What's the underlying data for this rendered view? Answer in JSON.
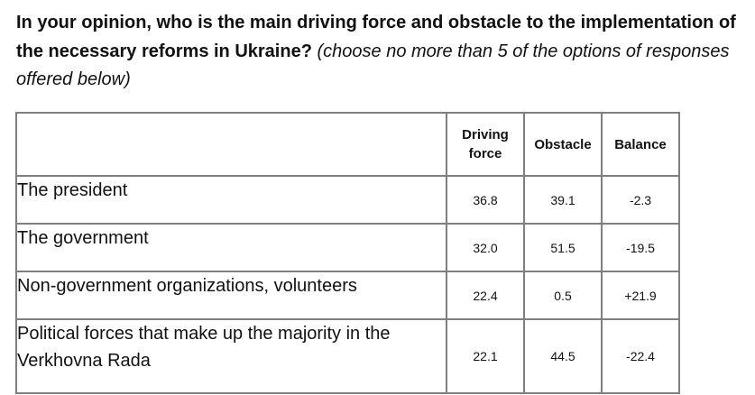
{
  "question": {
    "bold": "In your opinion, who is the main driving force and obstacle to the implementation of the necessary reforms in Ukraine?",
    "italic": "(choose no more than 5 of the options of responses offered below)"
  },
  "table": {
    "headers": {
      "blank": "",
      "driving_force": "Driving force",
      "obstacle": "Obstacle",
      "balance": "Balance"
    },
    "rows": [
      {
        "label": "The president",
        "driving_force": "36.8",
        "obstacle": "39.1",
        "balance": "-2.3"
      },
      {
        "label": "The government",
        "driving_force": "32.0",
        "obstacle": "51.5",
        "balance": "-19.5"
      },
      {
        "label": "Non-government organizations, volunteers",
        "driving_force": "22.4",
        "obstacle": "0.5",
        "balance": "+21.9"
      },
      {
        "label": "Political forces that make up the majority in the Verkhovna Rada",
        "driving_force": "22.1",
        "obstacle": "44.5",
        "balance": "-22.4"
      }
    ]
  }
}
